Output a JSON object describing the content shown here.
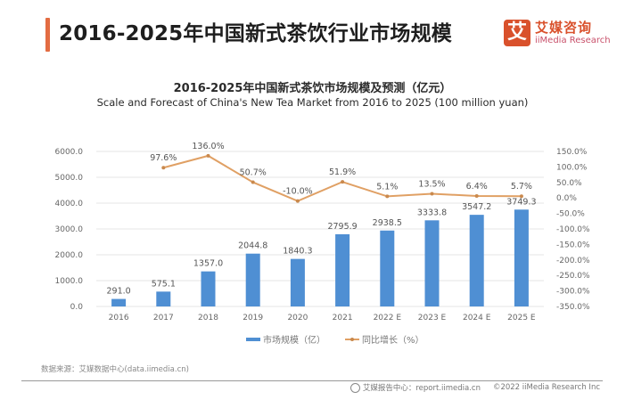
{
  "header": {
    "title": "2016-2025年中国新式茶饮行业市场规模",
    "accent_color": "#e36c42"
  },
  "logo": {
    "mark": "艾",
    "name_cn": "艾媒咨询",
    "name_en": "iiMedia Research",
    "brand_color": "#d9512c"
  },
  "chart_data": {
    "type": "bar",
    "title": "2016-2025年中国新式茶饮市场规模及预测（亿元）",
    "subtitle": "Scale and Forecast of China's New Tea Market from 2016 to 2025 (100 million yuan)",
    "categories": [
      "2016",
      "2017",
      "2018",
      "2019",
      "2020",
      "2021",
      "2022 E",
      "2023 E",
      "2024 E",
      "2025 E"
    ],
    "series": [
      {
        "name": "市场规模（亿）",
        "type": "bar",
        "axis": "left",
        "color": "#4f8fd3",
        "values": [
          291.0,
          575.1,
          1357.0,
          2044.8,
          1840.3,
          2795.9,
          2938.5,
          3333.8,
          3547.2,
          3749.3
        ],
        "labels": [
          "291.0",
          "575.1",
          "1357.0",
          "2044.8",
          "1840.3",
          "2795.9",
          "2938.5",
          "3333.8",
          "3547.2",
          "3749.3"
        ]
      },
      {
        "name": "同比增长（%）",
        "type": "line",
        "axis": "right",
        "color": "#e0a064",
        "values": [
          null,
          97.6,
          136.0,
          50.7,
          -10.0,
          51.9,
          5.1,
          13.5,
          6.4,
          5.7
        ],
        "labels": [
          "",
          "97.6%",
          "136.0%",
          "50.7%",
          "-10.0%",
          "51.9%",
          "5.1%",
          "13.5%",
          "6.4%",
          "5.7%"
        ]
      }
    ],
    "left_axis": {
      "ylim": [
        0,
        6000
      ],
      "ticks": [
        "0.0",
        "1000.0",
        "2000.0",
        "3000.0",
        "4000.0",
        "5000.0",
        "6000.0"
      ]
    },
    "right_axis": {
      "ylim": [
        -350,
        150
      ],
      "ticks": [
        "-350.0%",
        "-300.0%",
        "-250.0%",
        "-200.0%",
        "-150.0%",
        "-100.0%",
        "-50.0%",
        "0.0%",
        "50.0%",
        "100.0%",
        "150.0%"
      ]
    },
    "grid": true,
    "legend_position": "bottom",
    "legend": [
      "市场规模（亿）",
      "同比增长（%）"
    ]
  },
  "source": "数据来源：艾媒数据中心(data.iimedia.cn)",
  "footer": {
    "report_center": "艾媒报告中心：report.iimedia.cn",
    "copyright": "©2022  iiMedia Research  Inc"
  }
}
